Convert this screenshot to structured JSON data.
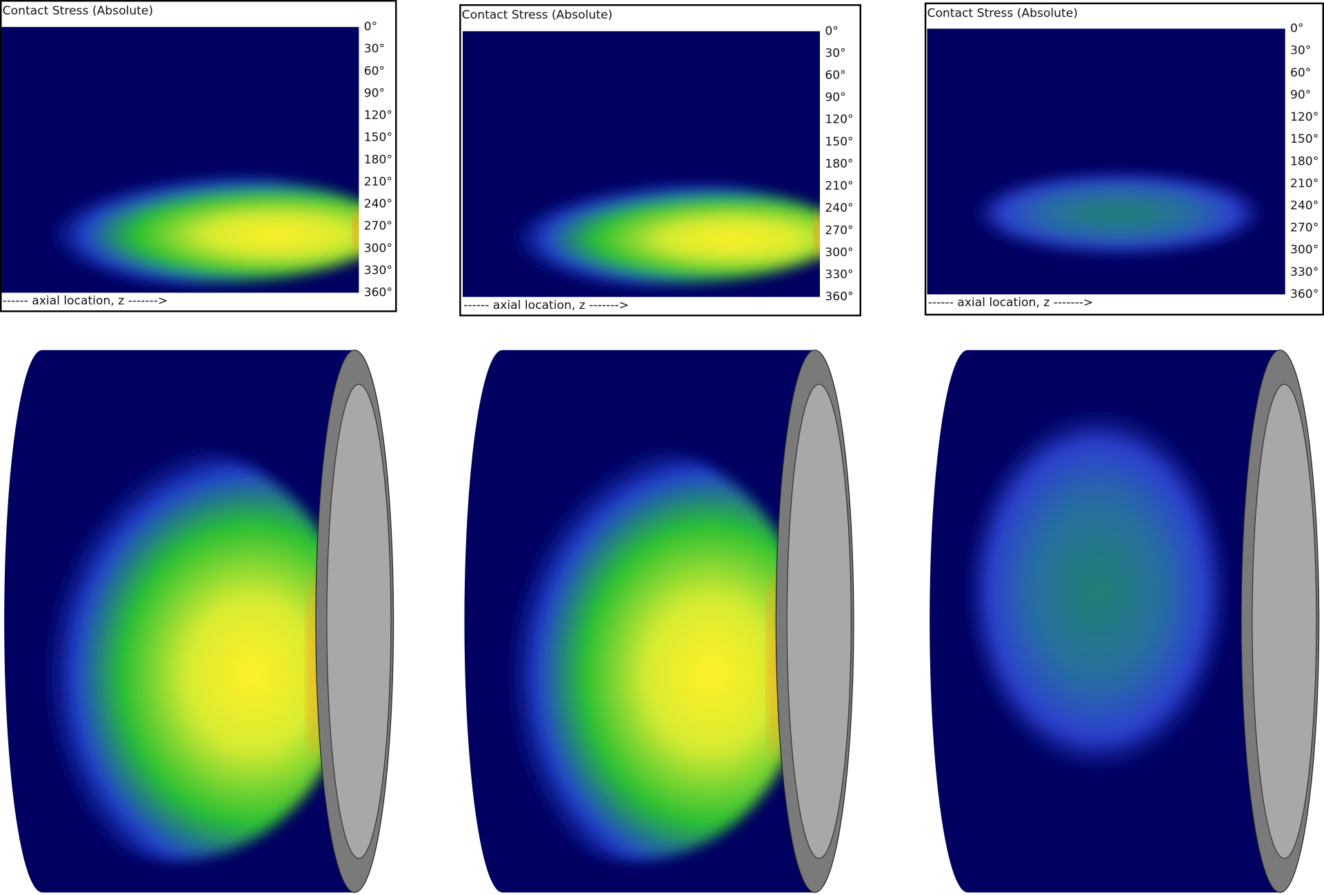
{
  "panels": [
    {
      "title": "Contact Stress (Absolute)",
      "angle_ticks": [
        "0°",
        "30°",
        "60°",
        "90°",
        "120°",
        "150°",
        "180°",
        "210°",
        "240°",
        "270°",
        "300°",
        "330°",
        "360°"
      ],
      "axis_label": "------ axial location, z ------->"
    },
    {
      "title": "Contact Stress (Absolute)",
      "angle_ticks": [
        "0°",
        "30°",
        "60°",
        "90°",
        "120°",
        "150°",
        "180°",
        "210°",
        "240°",
        "270°",
        "300°",
        "330°",
        "360°"
      ],
      "axis_label": "------ axial location, z ------->"
    },
    {
      "title": "Contact Stress (Absolute)",
      "angle_ticks": [
        "0°",
        "30°",
        "60°",
        "90°",
        "120°",
        "150°",
        "180°",
        "210°",
        "240°",
        "270°",
        "300°",
        "330°",
        "360°"
      ],
      "axis_label": "------ axial location, z ------->"
    }
  ]
}
